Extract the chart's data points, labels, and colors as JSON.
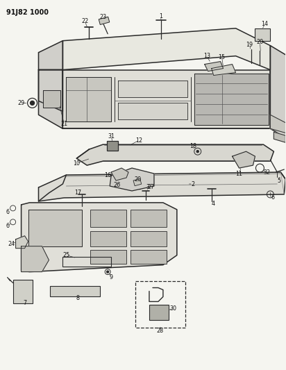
{
  "title": "91J82 1000",
  "bg_color": "#f5f5f0",
  "line_color": "#2a2a2a",
  "fig_width": 4.12,
  "fig_height": 5.33,
  "dpi": 100
}
